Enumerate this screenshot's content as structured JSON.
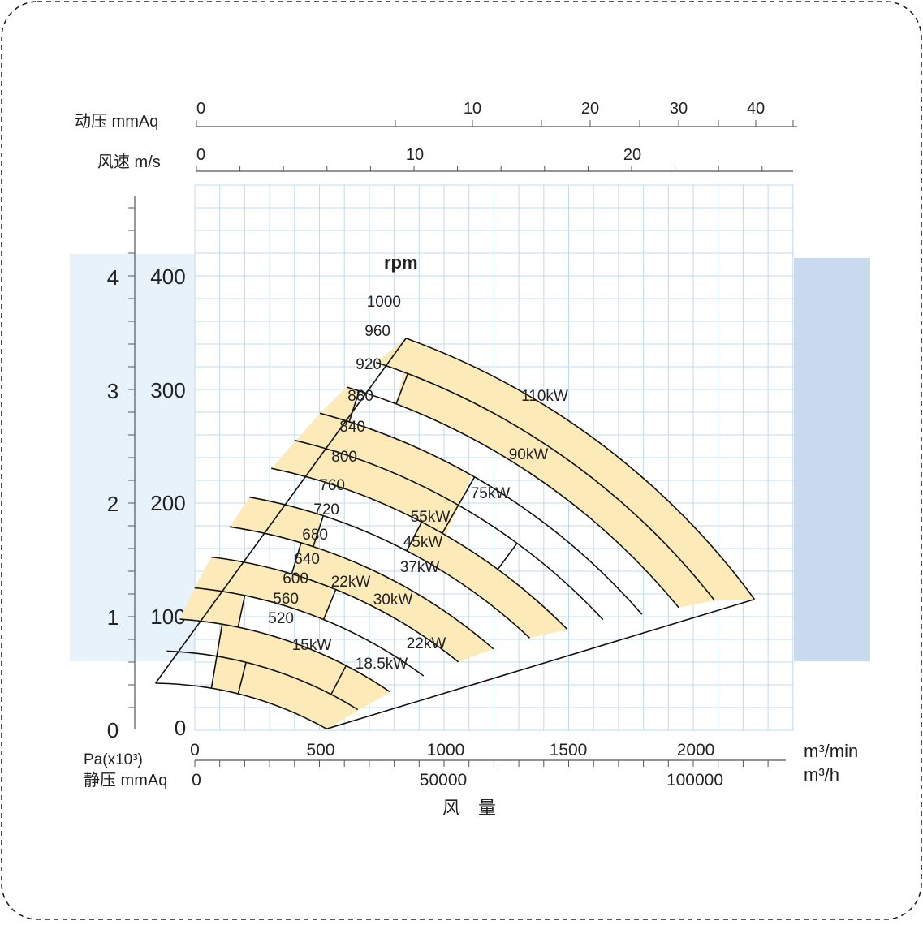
{
  "chart_data": {
    "type": "fan-performance",
    "rpm_title": "rpm",
    "x_axis": {
      "unit_top": "m³/min",
      "unit_bottom": "m³/h",
      "label": "风　量",
      "min_ticks": [
        "0",
        "500",
        "1000",
        "1500",
        "2000"
      ],
      "hour_ticks": [
        "0",
        "50000",
        "100000"
      ]
    },
    "y_axis": {
      "pa_unit": "Pa(x10³)",
      "mmaq_unit": "静压 mmAq",
      "pa_ticks": [
        "0",
        "1",
        "2",
        "3",
        "4"
      ],
      "mmaq_ticks": [
        "0",
        "100",
        "200",
        "300",
        "400"
      ]
    },
    "top_axes": {
      "dynamic_pressure_label": "动压  mmAq",
      "dynamic_pressure_ticks": [
        "0",
        "10",
        "20",
        "30",
        "40"
      ],
      "velocity_label": "风速  m/s",
      "velocity_ticks": [
        "0",
        "10",
        "20"
      ]
    },
    "rpm_labels": [
      "1000",
      "960",
      "920",
      "880",
      "840",
      "800",
      "760",
      "720",
      "680",
      "640",
      "600",
      "560",
      "520"
    ],
    "power_labels": [
      "110kW",
      "90kW",
      "75kW",
      "55kW",
      "45kW",
      "37kW",
      "22kW",
      "30kW",
      "15kW",
      "22kW",
      "18.5kW"
    ],
    "colors": {
      "band_fill": "#fdeab9",
      "panel_left": "#e8f2fb",
      "panel_right": "#c9daef",
      "grid": "#bfdbef"
    }
  }
}
